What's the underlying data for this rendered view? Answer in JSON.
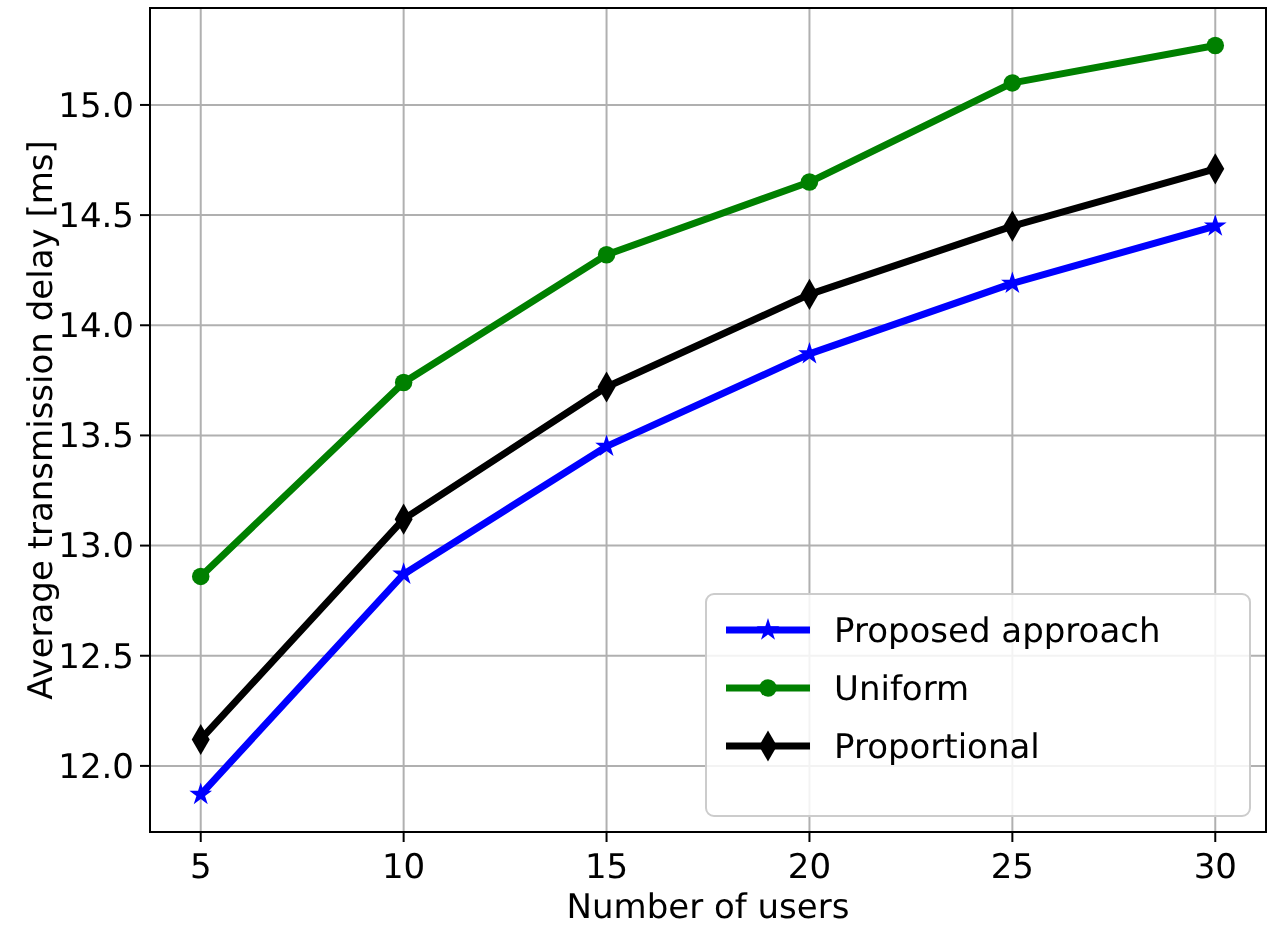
{
  "chart_data": {
    "type": "line",
    "xlabel": "Number of users",
    "ylabel": "Average transmission delay [ms]",
    "x": [
      5,
      10,
      15,
      20,
      25,
      30
    ],
    "series": [
      {
        "name": "Proposed approach",
        "color": "#0000ff",
        "marker": "star",
        "values": [
          11.87,
          12.87,
          13.45,
          13.87,
          14.19,
          14.45
        ]
      },
      {
        "name": "Uniform",
        "color": "#008000",
        "marker": "circle",
        "values": [
          12.86,
          13.74,
          14.32,
          14.65,
          15.1,
          15.27
        ]
      },
      {
        "name": "Proportional",
        "color": "#000000",
        "marker": "diamond",
        "values": [
          12.12,
          13.12,
          13.72,
          14.14,
          14.45,
          14.71
        ]
      }
    ],
    "xlim": [
      3.75,
      31.25
    ],
    "xticks": [
      5,
      10,
      15,
      20,
      25,
      30
    ],
    "ylim": [
      11.7,
      15.44
    ],
    "yticks": [
      {
        "value": 12,
        "label": "12.0"
      },
      {
        "value": 12.5,
        "label": "12.5"
      },
      {
        "value": 13,
        "label": "13.0"
      },
      {
        "value": 13.5,
        "label": "13.5"
      },
      {
        "value": 14,
        "label": "14.0"
      },
      {
        "value": 14.5,
        "label": "14.5"
      },
      {
        "value": 15,
        "label": "15.0"
      }
    ],
    "grid": true,
    "legend": "bottom right",
    "line_style": "solid"
  }
}
